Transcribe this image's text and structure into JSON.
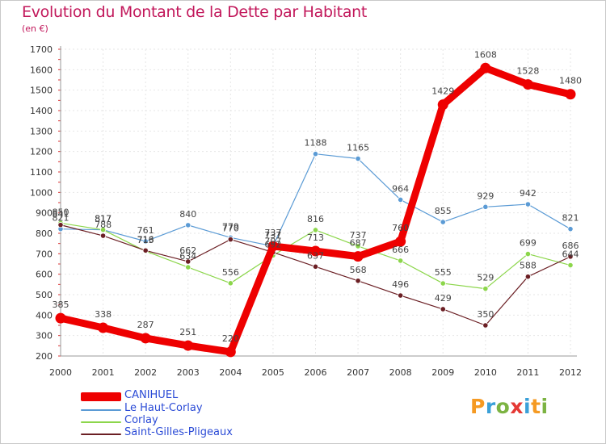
{
  "title": "Evolution du Montant de la Dette par Habitant",
  "subtitle": "(en €)",
  "logo": {
    "text": "Proxiti",
    "letter_colors": [
      "#f59a23",
      "#3aa0d8",
      "#7cb342",
      "#e53935",
      "#3aa0d8",
      "#f59a23",
      "#7cb342"
    ]
  },
  "chart_data": {
    "type": "line",
    "title": "Evolution du Montant de la Dette par Habitant",
    "ylabel": "(en €)",
    "x": [
      "2000",
      "2001",
      "2002",
      "2003",
      "2004",
      "2005",
      "2006",
      "2007",
      "2008",
      "2009",
      "2010",
      "2011",
      "2012"
    ],
    "ylim": [
      200,
      1700
    ],
    "yticks": [
      200,
      300,
      400,
      500,
      600,
      700,
      800,
      900,
      1000,
      1100,
      1200,
      1300,
      1400,
      1500,
      1600,
      1700
    ],
    "grid": true,
    "legend_position": "bottom-left",
    "series": [
      {
        "name": "CANIHUEL",
        "color": "#ee0000",
        "values": [
          385,
          338,
          287,
          251,
          220,
          737,
          713,
          687,
          760,
          1429,
          1608,
          1528,
          1480
        ]
      },
      {
        "name": "Le Haut-Corlay",
        "color": "#5b9bd5",
        "values": [
          821,
          817,
          761,
          840,
          779,
          737,
          1188,
          1165,
          964,
          855,
          929,
          942,
          821
        ]
      },
      {
        "name": "Corlay",
        "color": "#8cd64b",
        "values": [
          850,
          817,
          713,
          634,
          556,
          692,
          816,
          737,
          666,
          555,
          529,
          699,
          644
        ]
      },
      {
        "name": "Saint-Gilles-Pligeaux",
        "color": "#6b1f24",
        "values": [
          841,
          788,
          716,
          662,
          770,
          707,
          637,
          568,
          496,
          429,
          350,
          588,
          686
        ]
      }
    ]
  }
}
